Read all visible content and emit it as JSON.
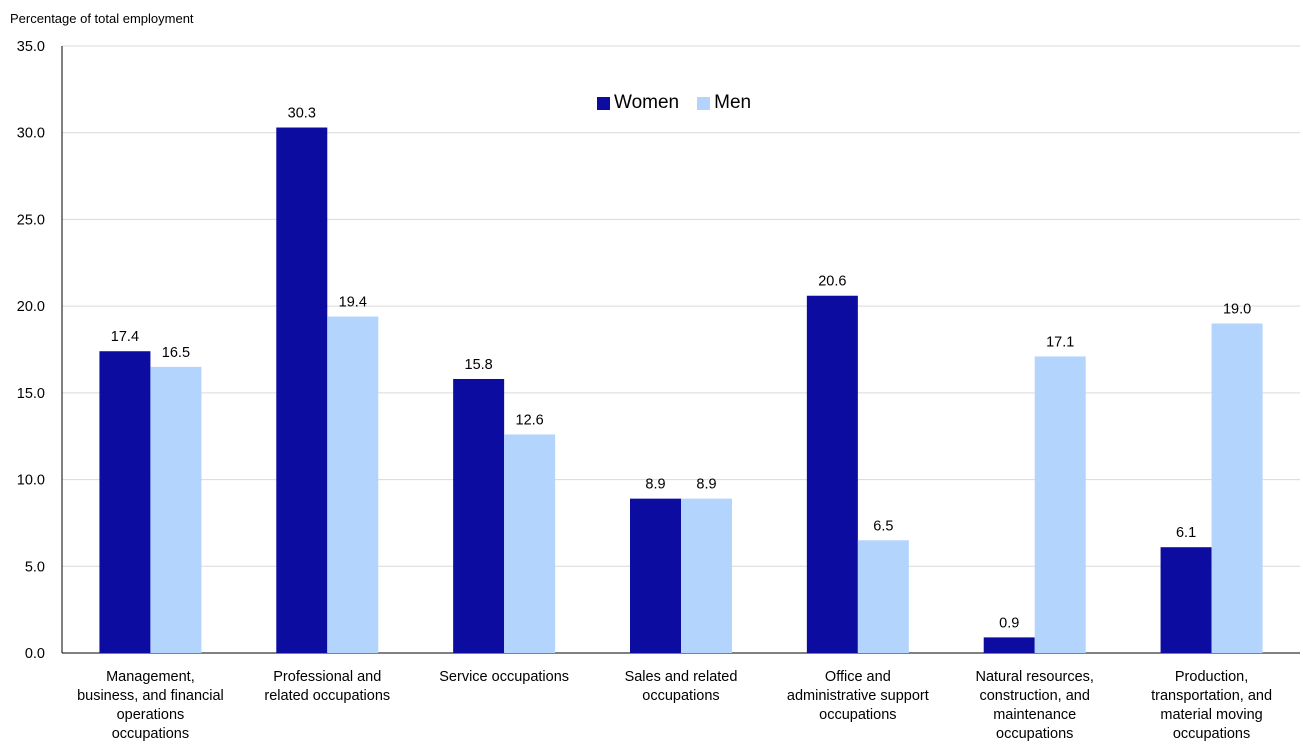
{
  "chart_data": {
    "type": "bar",
    "ylabel": "Percentage of total employment",
    "ylim": [
      0,
      35
    ],
    "yticks": [
      "0.0",
      "5.0",
      "10.0",
      "15.0",
      "20.0",
      "25.0",
      "30.0",
      "35.0"
    ],
    "grid": true,
    "legend_position": "top-center",
    "categories": [
      "Management,\nbusiness, and financial\noperations\noccupations",
      "Professional and\nrelated occupations",
      "Service occupations",
      "Sales and related\noccupations",
      "Office and\nadministrative support\noccupations",
      "Natural resources,\nconstruction, and\nmaintenance\noccupations",
      "Production,\ntransportation, and\nmaterial moving\noccupations"
    ],
    "series": [
      {
        "name": "Women",
        "color": "#0c0ca0",
        "values": [
          17.4,
          30.3,
          15.8,
          8.9,
          20.6,
          0.9,
          6.1
        ],
        "labels": [
          "17.4",
          "30.3",
          "15.8",
          "8.9",
          "20.6",
          "0.9",
          "6.1"
        ]
      },
      {
        "name": "Men",
        "color": "#b3d4fc",
        "values": [
          16.5,
          19.4,
          12.6,
          8.9,
          6.5,
          17.1,
          19.0
        ],
        "labels": [
          "16.5",
          "19.4",
          "12.6",
          "8.9",
          "6.5",
          "17.1",
          "19.0"
        ]
      }
    ]
  }
}
